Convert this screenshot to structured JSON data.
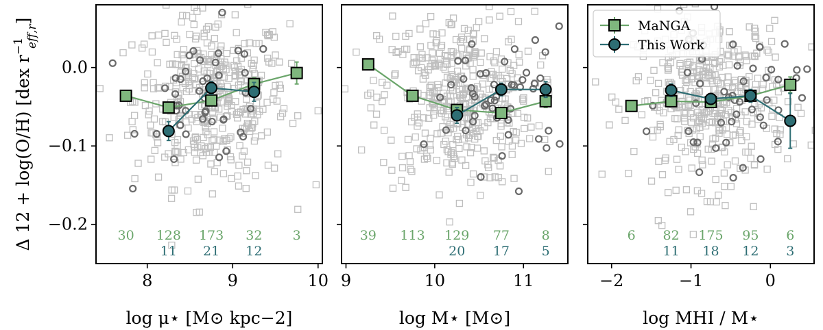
{
  "colors": {
    "manga": "#6aa56a",
    "manga_fill": "#7fb77e",
    "this_work": "#2e6e74",
    "this_work_fill": "#2e6e74",
    "manga_background": "#bfbfbf",
    "this_work_background": "#6b6b6b"
  },
  "legend": {
    "entries": [
      "MaNGA",
      "This Work"
    ],
    "placement": "top-left of third panel"
  },
  "shared_ylabel": "Δ 12 + log(O/H) [dex r",
  "shared_ylabel_sup": "−1",
  "shared_ylabel_sub": "eff,r",
  "shared_ylabel_close": "]",
  "chart_data": [
    {
      "type": "scatter",
      "xlabel": "log μ⋆ [M⊙ kpc−2]",
      "xlim": [
        7.4,
        10.05
      ],
      "ylim": [
        -0.25,
        0.08
      ],
      "xticks": [
        8,
        9,
        10
      ],
      "xtick_labels": [
        "8",
        "9",
        "10"
      ],
      "yticks": [
        0.0,
        -0.1,
        -0.2
      ],
      "ytick_labels": [
        "0.0",
        "−0.1",
        "−0.2"
      ],
      "series": [
        {
          "name": "MaNGA",
          "x": [
            7.75,
            8.25,
            8.75,
            9.25,
            9.75
          ],
          "y": [
            -0.036,
            -0.051,
            -0.042,
            -0.021,
            -0.007
          ],
          "yerr": [
            0.004,
            0.004,
            0.004,
            0.008,
            0.014
          ]
        },
        {
          "name": "This Work",
          "x": [
            8.25,
            8.75,
            9.25
          ],
          "y": [
            -0.081,
            -0.026,
            -0.031
          ],
          "yerr": [
            0.012,
            0.008,
            0.012
          ]
        }
      ],
      "counts_manga": [
        "30",
        "128",
        "173",
        "32",
        "3"
      ],
      "counts_this_work": [
        "",
        "11",
        "21",
        "12",
        ""
      ]
    },
    {
      "type": "scatter",
      "xlabel": "log M⋆ [M⊙]",
      "xlim": [
        8.95,
        11.5
      ],
      "ylim": [
        -0.25,
        0.08
      ],
      "xticks": [
        9,
        10,
        11
      ],
      "xtick_labels": [
        "9",
        "10",
        "11"
      ],
      "yticks": [
        0.0,
        -0.1,
        -0.2
      ],
      "ytick_labels": [
        "",
        "",
        ""
      ],
      "series": [
        {
          "name": "MaNGA",
          "x": [
            9.25,
            9.75,
            10.25,
            10.75,
            11.25
          ],
          "y": [
            0.004,
            -0.036,
            -0.054,
            -0.058,
            -0.043
          ],
          "yerr": [
            0.006,
            0.004,
            0.004,
            0.004,
            0.008
          ]
        },
        {
          "name": "This Work",
          "x": [
            10.25,
            10.75,
            11.25
          ],
          "y": [
            -0.061,
            -0.028,
            -0.028
          ],
          "yerr": [
            0.01,
            0.008,
            0.01
          ]
        }
      ],
      "counts_manga": [
        "39",
        "113",
        "129",
        "77",
        "8"
      ],
      "counts_this_work": [
        "",
        "",
        "20",
        "17",
        "5"
      ]
    },
    {
      "type": "scatter",
      "xlabel": "log MHI / M⋆",
      "xlim": [
        -2.3,
        0.55
      ],
      "ylim": [
        -0.25,
        0.08
      ],
      "xticks": [
        -2,
        -1,
        0
      ],
      "xtick_labels": [
        "−2",
        "−1",
        "0"
      ],
      "yticks": [
        0.0,
        -0.1,
        -0.2
      ],
      "ytick_labels": [
        "",
        "",
        ""
      ],
      "series": [
        {
          "name": "MaNGA",
          "x": [
            -1.75,
            -1.25,
            -0.75,
            -0.25,
            0.25
          ],
          "y": [
            -0.049,
            -0.043,
            -0.044,
            -0.036,
            -0.022
          ],
          "yerr": [
            0.004,
            0.004,
            0.004,
            0.004,
            0.01
          ]
        },
        {
          "name": "This Work",
          "x": [
            -1.25,
            -0.75,
            -0.25,
            0.25
          ],
          "y": [
            -0.029,
            -0.04,
            -0.036,
            -0.068
          ],
          "yerr": [
            0.008,
            0.006,
            0.008,
            0.035
          ]
        }
      ],
      "counts_manga": [
        "6",
        "82",
        "175",
        "95",
        "6"
      ],
      "counts_this_work": [
        "",
        "11",
        "18",
        "12",
        "3"
      ]
    }
  ]
}
